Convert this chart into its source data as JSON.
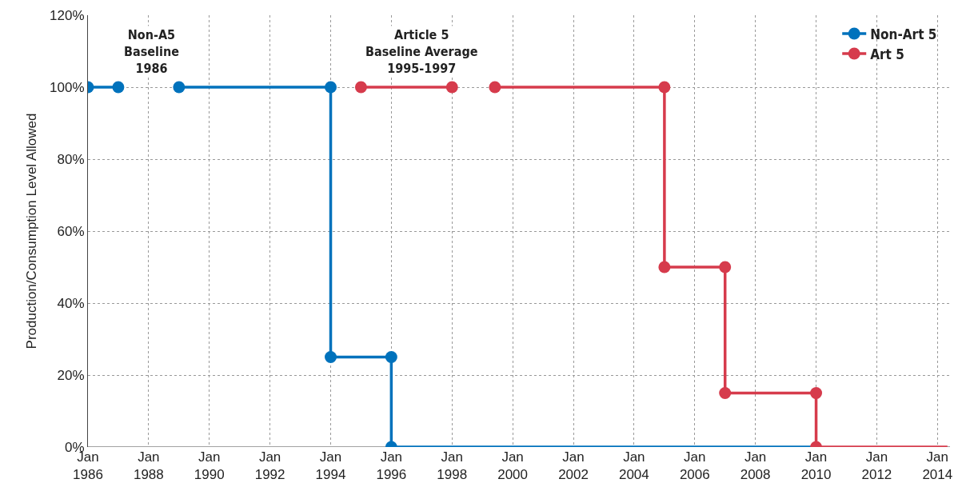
{
  "chart_data": {
    "type": "line",
    "ylabel": "Production/Consumption Level Allowed",
    "xlim": [
      "1986-01-01",
      "2014-06-01"
    ],
    "xticks": [
      {
        "value": "1986-01-01",
        "label": "Jan\n1986"
      },
      {
        "value": "1988-01-01",
        "label": "Jan\n1988"
      },
      {
        "value": "1990-01-01",
        "label": "Jan\n1990"
      },
      {
        "value": "1992-01-01",
        "label": "Jan\n1992"
      },
      {
        "value": "1994-01-01",
        "label": "Jan\n1994"
      },
      {
        "value": "1996-01-01",
        "label": "Jan\n1996"
      },
      {
        "value": "1998-01-01",
        "label": "Jan\n1998"
      },
      {
        "value": "2000-01-01",
        "label": "Jan\n2000"
      },
      {
        "value": "2002-01-01",
        "label": "Jan\n2002"
      },
      {
        "value": "2004-01-01",
        "label": "Jan\n2004"
      },
      {
        "value": "2006-01-01",
        "label": "Jan\n2006"
      },
      {
        "value": "2008-01-01",
        "label": "Jan\n2008"
      },
      {
        "value": "2010-01-01",
        "label": "Jan\n2010"
      },
      {
        "value": "2012-01-01",
        "label": "Jan\n2012"
      },
      {
        "value": "2014-01-01",
        "label": "Jan\n2014"
      }
    ],
    "ylim": [
      0,
      120
    ],
    "yticks": [
      {
        "value": 0,
        "label": "0%"
      },
      {
        "value": 20,
        "label": "20%"
      },
      {
        "value": 40,
        "label": "40%"
      },
      {
        "value": 60,
        "label": "60%"
      },
      {
        "value": 80,
        "label": "80%"
      },
      {
        "value": 100,
        "label": "100%"
      },
      {
        "value": 120,
        "label": "120%"
      }
    ],
    "grid": true,
    "legend": "top right",
    "line_style": "solid",
    "series": [
      {
        "name": "Non-Art 5",
        "color": "#0072bc",
        "marker": "circle",
        "x": [
          "1986-01",
          "1987-01",
          "1988-01",
          "1989-01",
          "1994-01",
          "1994-01",
          "1996-01",
          "1996-01"
        ],
        "values": [
          100,
          100,
          null,
          100,
          100,
          25,
          25,
          0
        ]
      },
      {
        "color": "#0072bc",
        "marker": "none",
        "x": [
          "1996-01",
          "2010-01"
        ],
        "values": [
          0,
          0
        ]
      },
      {
        "name": "Art 5",
        "color": "#d63b4c",
        "marker": "circle",
        "x": [
          "1995-01",
          "1998-01",
          "1999-01",
          "1999-06",
          "2005-01",
          "2005-01",
          "2007-01",
          "2007-01",
          "2010-01",
          "2010-01"
        ],
        "values": [
          100,
          100,
          null,
          100,
          100,
          50,
          50,
          15,
          15,
          0
        ]
      },
      {
        "color": "#d63b4c",
        "marker": "none",
        "x": [
          "2010-01",
          "2014-05"
        ],
        "values": [
          0,
          0
        ]
      }
    ],
    "annotations": [
      "Non-A5\nBaseline\n1986",
      "Article 5\nBaseline Average\n1995-1997"
    ]
  }
}
